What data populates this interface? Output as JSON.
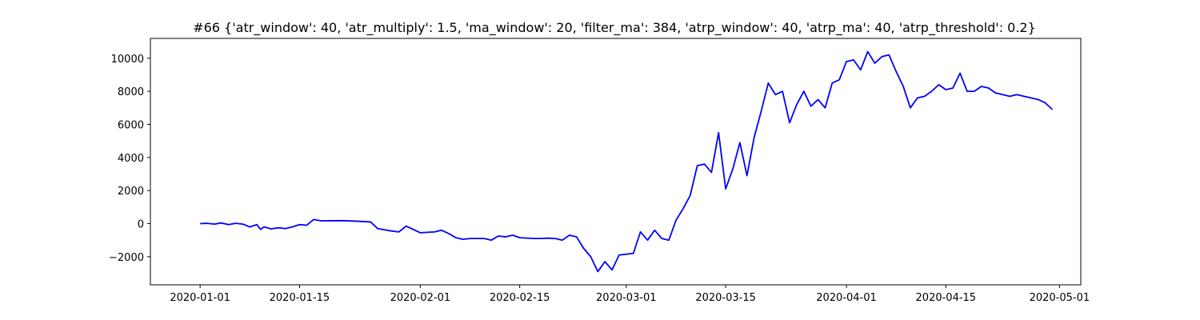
{
  "chart_data": {
    "type": "line",
    "title": "#66 {'atr_window': 40, 'atr_multiply': 1.5, 'ma_window': 20, 'filter_ma': 384, 'atrp_window': 40, 'atrp_ma': 40, 'atrp_threshold': 0.2}",
    "xlabel": "",
    "ylabel": "",
    "x_axis": "date",
    "xlim": [
      "2019-12-25",
      "2020-05-04"
    ],
    "ylim": [
      -3700,
      11200
    ],
    "x_ticks": [
      "2020-01-01",
      "2020-01-15",
      "2020-02-01",
      "2020-02-15",
      "2020-03-01",
      "2020-03-15",
      "2020-04-01",
      "2020-04-15",
      "2020-05-01"
    ],
    "y_ticks": [
      -2000,
      0,
      2000,
      4000,
      6000,
      8000,
      10000
    ],
    "y_tick_labels": [
      "−2000",
      "0",
      "2000",
      "4000",
      "6000",
      "8000",
      "10000"
    ],
    "grid": false,
    "legend": "none",
    "series": [
      {
        "color": "#0000ff",
        "points": [
          [
            "2020-01-01",
            0
          ],
          [
            "2020-01-02",
            20
          ],
          [
            "2020-01-03",
            -30
          ],
          [
            "2020-01-04",
            40
          ],
          [
            "2020-01-05",
            -60
          ],
          [
            "2020-01-06",
            20
          ],
          [
            "2020-01-07",
            -30
          ],
          [
            "2020-01-08",
            -200
          ],
          [
            "2020-01-09",
            -60
          ],
          [
            "2020-01-09T12:00",
            -350
          ],
          [
            "2020-01-10",
            -200
          ],
          [
            "2020-01-11",
            -320
          ],
          [
            "2020-01-12",
            -250
          ],
          [
            "2020-01-13",
            -300
          ],
          [
            "2020-01-14",
            -200
          ],
          [
            "2020-01-15",
            -60
          ],
          [
            "2020-01-16",
            -100
          ],
          [
            "2020-01-17",
            250
          ],
          [
            "2020-01-18",
            170
          ],
          [
            "2020-01-21",
            180
          ],
          [
            "2020-01-23",
            150
          ],
          [
            "2020-01-25",
            100
          ],
          [
            "2020-01-26",
            -300
          ],
          [
            "2020-01-28",
            -450
          ],
          [
            "2020-01-29",
            -500
          ],
          [
            "2020-01-30",
            -150
          ],
          [
            "2020-01-31",
            -350
          ],
          [
            "2020-02-01",
            -550
          ],
          [
            "2020-02-03",
            -500
          ],
          [
            "2020-02-04",
            -400
          ],
          [
            "2020-02-05",
            -600
          ],
          [
            "2020-02-06",
            -850
          ],
          [
            "2020-02-07",
            -950
          ],
          [
            "2020-02-08",
            -900
          ],
          [
            "2020-02-10",
            -900
          ],
          [
            "2020-02-11",
            -1000
          ],
          [
            "2020-02-12",
            -750
          ],
          [
            "2020-02-13",
            -800
          ],
          [
            "2020-02-14",
            -700
          ],
          [
            "2020-02-15",
            -850
          ],
          [
            "2020-02-17",
            -900
          ],
          [
            "2020-02-18",
            -900
          ],
          [
            "2020-02-19",
            -880
          ],
          [
            "2020-02-20",
            -900
          ],
          [
            "2020-02-21",
            -1000
          ],
          [
            "2020-02-22",
            -700
          ],
          [
            "2020-02-23",
            -800
          ],
          [
            "2020-02-24",
            -1500
          ],
          [
            "2020-02-25",
            -2000
          ],
          [
            "2020-02-26",
            -2900
          ],
          [
            "2020-02-27",
            -2300
          ],
          [
            "2020-02-28",
            -2800
          ],
          [
            "2020-02-29",
            -1900
          ],
          [
            "2020-03-01",
            -1850
          ],
          [
            "2020-03-02",
            -1800
          ],
          [
            "2020-03-03",
            -500
          ],
          [
            "2020-03-04",
            -1000
          ],
          [
            "2020-03-05",
            -400
          ],
          [
            "2020-03-06",
            -900
          ],
          [
            "2020-03-07",
            -1000
          ],
          [
            "2020-03-08",
            200
          ],
          [
            "2020-03-09",
            900
          ],
          [
            "2020-03-10",
            1700
          ],
          [
            "2020-03-11",
            3500
          ],
          [
            "2020-03-12",
            3600
          ],
          [
            "2020-03-13",
            3100
          ],
          [
            "2020-03-14",
            5500
          ],
          [
            "2020-03-15",
            2100
          ],
          [
            "2020-03-16",
            3300
          ],
          [
            "2020-03-17",
            4900
          ],
          [
            "2020-03-18",
            2900
          ],
          [
            "2020-03-19",
            5200
          ],
          [
            "2020-03-20",
            6800
          ],
          [
            "2020-03-21",
            8500
          ],
          [
            "2020-03-22",
            7800
          ],
          [
            "2020-03-23",
            8000
          ],
          [
            "2020-03-24",
            6100
          ],
          [
            "2020-03-25",
            7200
          ],
          [
            "2020-03-26",
            8000
          ],
          [
            "2020-03-27",
            7100
          ],
          [
            "2020-03-28",
            7500
          ],
          [
            "2020-03-29",
            7000
          ],
          [
            "2020-03-30",
            8500
          ],
          [
            "2020-03-31",
            8700
          ],
          [
            "2020-04-01",
            9800
          ],
          [
            "2020-04-02",
            9900
          ],
          [
            "2020-04-03",
            9300
          ],
          [
            "2020-04-04",
            10400
          ],
          [
            "2020-04-05",
            9700
          ],
          [
            "2020-04-06",
            10100
          ],
          [
            "2020-04-07",
            10200
          ],
          [
            "2020-04-08",
            9200
          ],
          [
            "2020-04-09",
            8300
          ],
          [
            "2020-04-10",
            7000
          ],
          [
            "2020-04-11",
            7600
          ],
          [
            "2020-04-12",
            7700
          ],
          [
            "2020-04-13",
            8000
          ],
          [
            "2020-04-14",
            8400
          ],
          [
            "2020-04-15",
            8100
          ],
          [
            "2020-04-16",
            8200
          ],
          [
            "2020-04-17",
            9100
          ],
          [
            "2020-04-18",
            8000
          ],
          [
            "2020-04-19",
            8000
          ],
          [
            "2020-04-20",
            8300
          ],
          [
            "2020-04-21",
            8200
          ],
          [
            "2020-04-22",
            7900
          ],
          [
            "2020-04-23",
            7800
          ],
          [
            "2020-04-24",
            7700
          ],
          [
            "2020-04-25",
            7800
          ],
          [
            "2020-04-26",
            7700
          ],
          [
            "2020-04-27",
            7600
          ],
          [
            "2020-04-28",
            7500
          ],
          [
            "2020-04-29",
            7300
          ],
          [
            "2020-04-30",
            6900
          ]
        ]
      }
    ]
  }
}
